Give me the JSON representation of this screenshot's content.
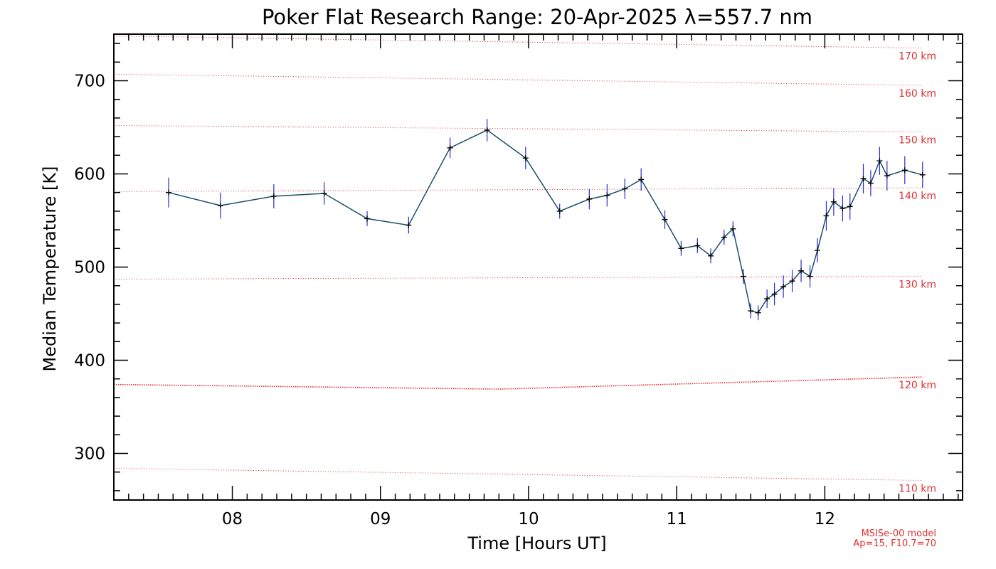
{
  "chart_data": {
    "type": "line",
    "title": "Poker Flat Research Range: 20-Apr-2025 λ=557.7 nm",
    "xlabel": "Time [Hours UT]",
    "ylabel": "Median Temperature [K]",
    "xlim": [
      7.2,
      12.93
    ],
    "ylim": [
      250,
      750
    ],
    "x_ticks": [
      "08",
      "09",
      "10",
      "11",
      "12"
    ],
    "y_ticks": [
      "300",
      "400",
      "500",
      "600",
      "700"
    ],
    "grid": false,
    "series": [
      {
        "x": [
          7.57,
          7.92,
          8.28,
          8.62,
          8.91,
          9.19,
          9.47,
          9.72,
          9.98,
          10.21,
          10.41,
          10.53,
          10.65,
          10.76,
          10.92,
          11.03,
          11.14,
          11.23,
          11.32,
          11.38,
          11.45,
          11.5,
          11.55,
          11.61,
          11.66,
          11.72,
          11.78,
          11.84,
          11.9,
          11.95,
          12.01,
          12.06,
          12.12,
          12.17,
          12.26,
          12.31,
          12.37,
          12.42,
          12.54,
          12.66
        ],
        "values": [
          580,
          566,
          576,
          579,
          552,
          545,
          628,
          647,
          617,
          560,
          573,
          577,
          584,
          594,
          551,
          520,
          523,
          512,
          532,
          541,
          490,
          453,
          451,
          466,
          471,
          479,
          485,
          496,
          490,
          518,
          555,
          570,
          563,
          565,
          595,
          590,
          614,
          598,
          604,
          599
        ],
        "error": [
          16,
          14,
          13,
          12,
          8,
          9,
          11,
          12,
          12,
          8,
          11,
          12,
          11,
          12,
          10,
          8,
          8,
          8,
          8,
          8,
          8,
          8,
          8,
          10,
          12,
          12,
          12,
          12,
          12,
          13,
          16,
          15,
          14,
          14,
          16,
          14,
          15,
          16,
          15,
          14
        ],
        "color": "#1a4f6a",
        "error_color": "#2a2ad8",
        "marker": "+"
      }
    ],
    "reference_lines": {
      "model": "MSISe-00",
      "params": "Ap=15, F10.7=70",
      "color": "#e03030",
      "lines": [
        {
          "label": "110 km",
          "x": [
            7.2,
            12.66
          ],
          "y": [
            284,
            271
          ]
        },
        {
          "label": "120 km",
          "x": [
            7.2,
            9.8,
            12.66
          ],
          "y": [
            374,
            369,
            382
          ]
        },
        {
          "label": "130 km",
          "x": [
            7.2,
            12.66
          ],
          "y": [
            487,
            490
          ]
        },
        {
          "label": "140 km",
          "x": [
            7.2,
            12.66
          ],
          "y": [
            581,
            585
          ]
        },
        {
          "label": "150 km",
          "x": [
            7.2,
            12.66
          ],
          "y": [
            652,
            645
          ]
        },
        {
          "label": "160 km",
          "x": [
            7.2,
            12.66
          ],
          "y": [
            707,
            695
          ]
        },
        {
          "label": "170 km",
          "x": [
            7.2,
            12.66
          ],
          "y": [
            748,
            735
          ]
        }
      ]
    },
    "annotations": [
      "MSISe-00 model",
      "Ap=15, F10.7=70"
    ]
  }
}
